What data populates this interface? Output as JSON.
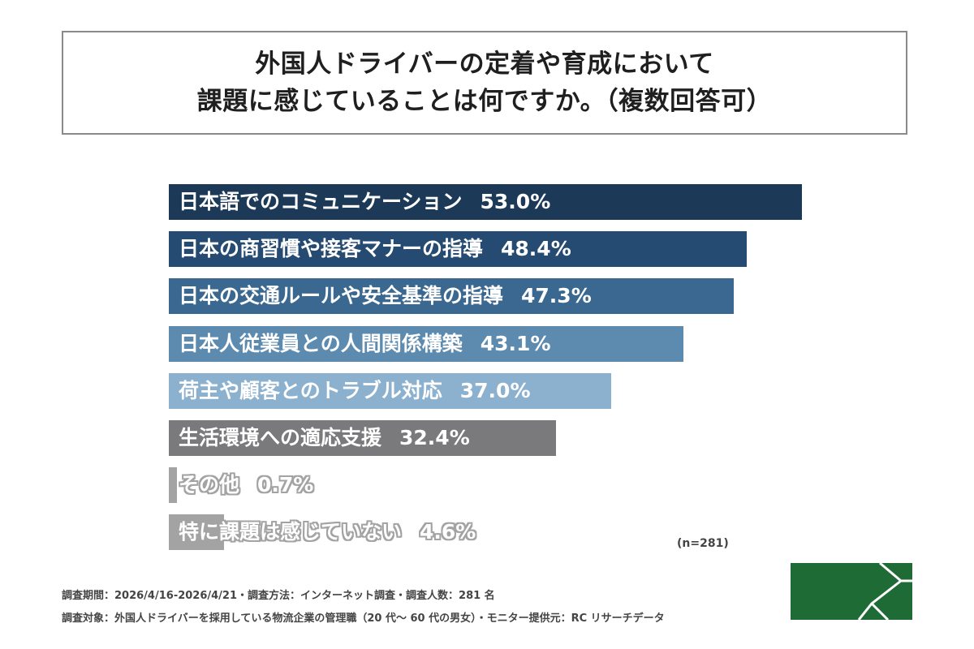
{
  "title": {
    "line1": "外国人ドライバーの定着や育成において",
    "line2": "課題に感じていることは何ですか。（複数回答可）"
  },
  "chart_data": {
    "type": "bar",
    "orientation": "horizontal",
    "unit": "%",
    "categories": [
      "日本語でのコミュニケーション",
      "日本の商習慣や接客マナーの指導",
      "日本の交通ルールや安全基準の指導",
      "日本人従業員との人間関係構築",
      "荷主や顧客とのトラブル対応",
      "生活環境への適応支援",
      "その他",
      "特に課題は感じていない"
    ],
    "values": [
      53.0,
      48.4,
      47.3,
      43.1,
      37.0,
      32.4,
      0.7,
      4.6
    ],
    "value_labels": [
      "53.0%",
      "48.4%",
      "47.3%",
      "43.1%",
      "37.0%",
      "32.4%",
      "0.7%",
      "4.6%"
    ],
    "colors": [
      "#1c3a57",
      "#254b72",
      "#3b6890",
      "#5d8bb0",
      "#8bb1cf",
      "#7a7a7c",
      "#a3a3a3",
      "#a3a3a3"
    ],
    "n_label": "(n=281)"
  },
  "footer": {
    "line1": "調査期間：2026/4/16-2026/4/21・調査方法：インターネット調査・調査人数：281 名",
    "line2": "調査対象：外国人ドライバーを採用している物流企業の管理職（20 代～ 60 代の男女）・モニター提供元：RC リサーチデータ"
  },
  "logo": {
    "color": "#1f6b35",
    "icon": "company-logo-icon"
  }
}
